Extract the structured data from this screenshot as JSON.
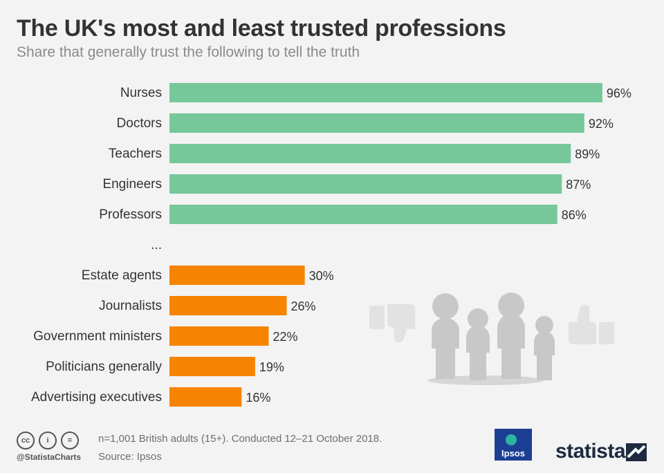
{
  "title": "The UK's most and least trusted professions",
  "subtitle": "Share that generally trust the following to tell the truth",
  "chart_data": {
    "type": "bar",
    "orientation": "horizontal",
    "categories": [
      "Nurses",
      "Doctors",
      "Teachers",
      "Engineers",
      "Professors",
      "...",
      "Estate agents",
      "Journalists",
      "Government ministers",
      "Politicians generally",
      "Advertising executives"
    ],
    "values": [
      96,
      92,
      89,
      87,
      86,
      null,
      30,
      26,
      22,
      19,
      16
    ],
    "value_labels": [
      "96%",
      "92%",
      "89%",
      "87%",
      "86%",
      "",
      "30%",
      "26%",
      "22%",
      "19%",
      "16%"
    ],
    "colors": {
      "most_trusted": "#76c799",
      "least_trusted": "#f78400"
    },
    "groups": [
      "most_trusted",
      "most_trusted",
      "most_trusted",
      "most_trusted",
      "most_trusted",
      "gap",
      "least_trusted",
      "least_trusted",
      "least_trusted",
      "least_trusted",
      "least_trusted"
    ],
    "xlim": [
      0,
      100
    ],
    "unit": "%"
  },
  "footer": {
    "note": "n=1,001 British adults (15+). Conducted 12–21 October 2018.",
    "source": "Source: Ipsos",
    "handle": "@StatistaCharts",
    "cc_icons": [
      "cc",
      "i",
      "="
    ]
  },
  "logos": {
    "ipsos": "Ipsos",
    "statista": "statista"
  },
  "illustration": {
    "icons": [
      "thumbs-down-icon",
      "people-group-icon",
      "thumbs-up-icon"
    ],
    "color": "#c8c8c8"
  }
}
